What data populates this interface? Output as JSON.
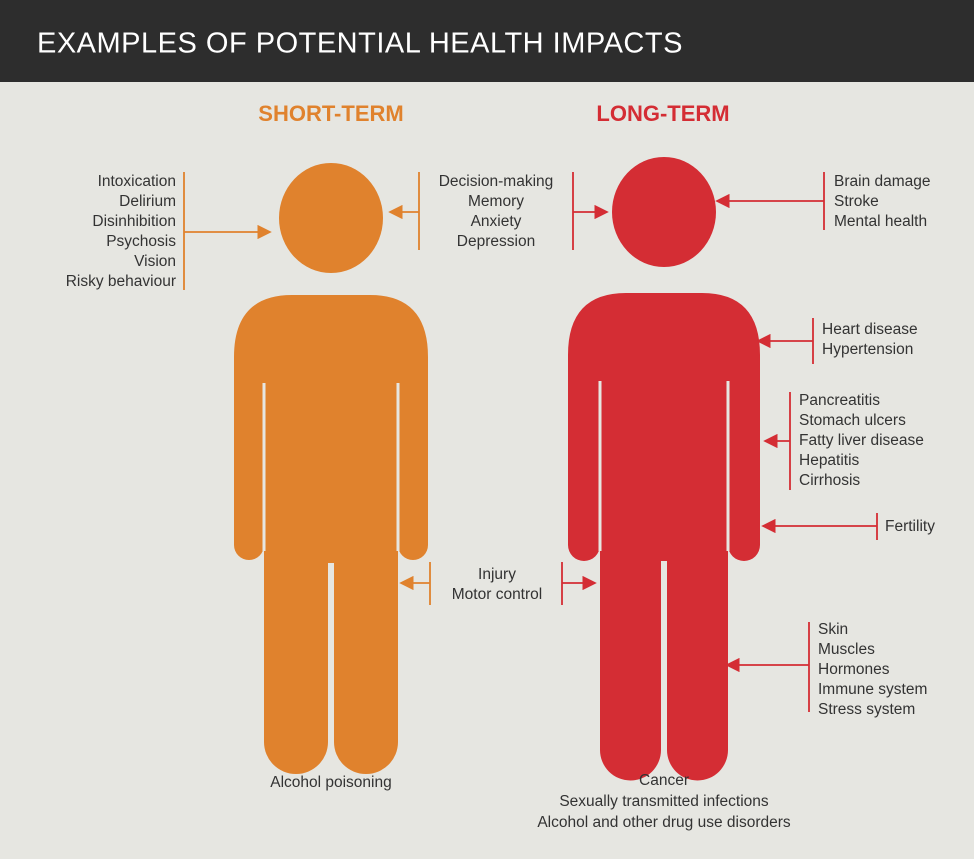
{
  "header": {
    "title": "EXAMPLES OF POTENTIAL HEALTH IMPACTS"
  },
  "columns": [
    {
      "heading": "SHORT-TERM"
    },
    {
      "heading": "LONG-TERM"
    }
  ],
  "groups": [
    {
      "lines": [
        "Intoxication",
        "Delirium",
        "Disinhibition",
        "Psychosis",
        "Vision",
        "Risky behaviour"
      ]
    },
    {
      "lines": [
        "Decision-making",
        "Memory",
        "Anxiety",
        "Depression"
      ]
    },
    {
      "lines": [
        "Brain damage",
        "Stroke",
        "Mental health"
      ]
    },
    {
      "lines": [
        "Heart disease",
        "Hypertension"
      ]
    },
    {
      "lines": [
        "Pancreatitis",
        "Stomach ulcers",
        "Fatty liver disease",
        "Hepatitis",
        "Cirrhosis"
      ]
    },
    {
      "lines": [
        "Fertility"
      ]
    },
    {
      "lines": [
        "Injury",
        "Motor control"
      ]
    },
    {
      "lines": [
        "Skin",
        "Muscles",
        "Hormones",
        "Immune system",
        "Stress system"
      ]
    },
    {
      "lines": [
        "Alcohol poisoning"
      ]
    },
    {
      "lines": [
        "Cancer",
        "Sexually transmitted infections",
        "Alcohol and other drug use disorders"
      ]
    }
  ]
}
